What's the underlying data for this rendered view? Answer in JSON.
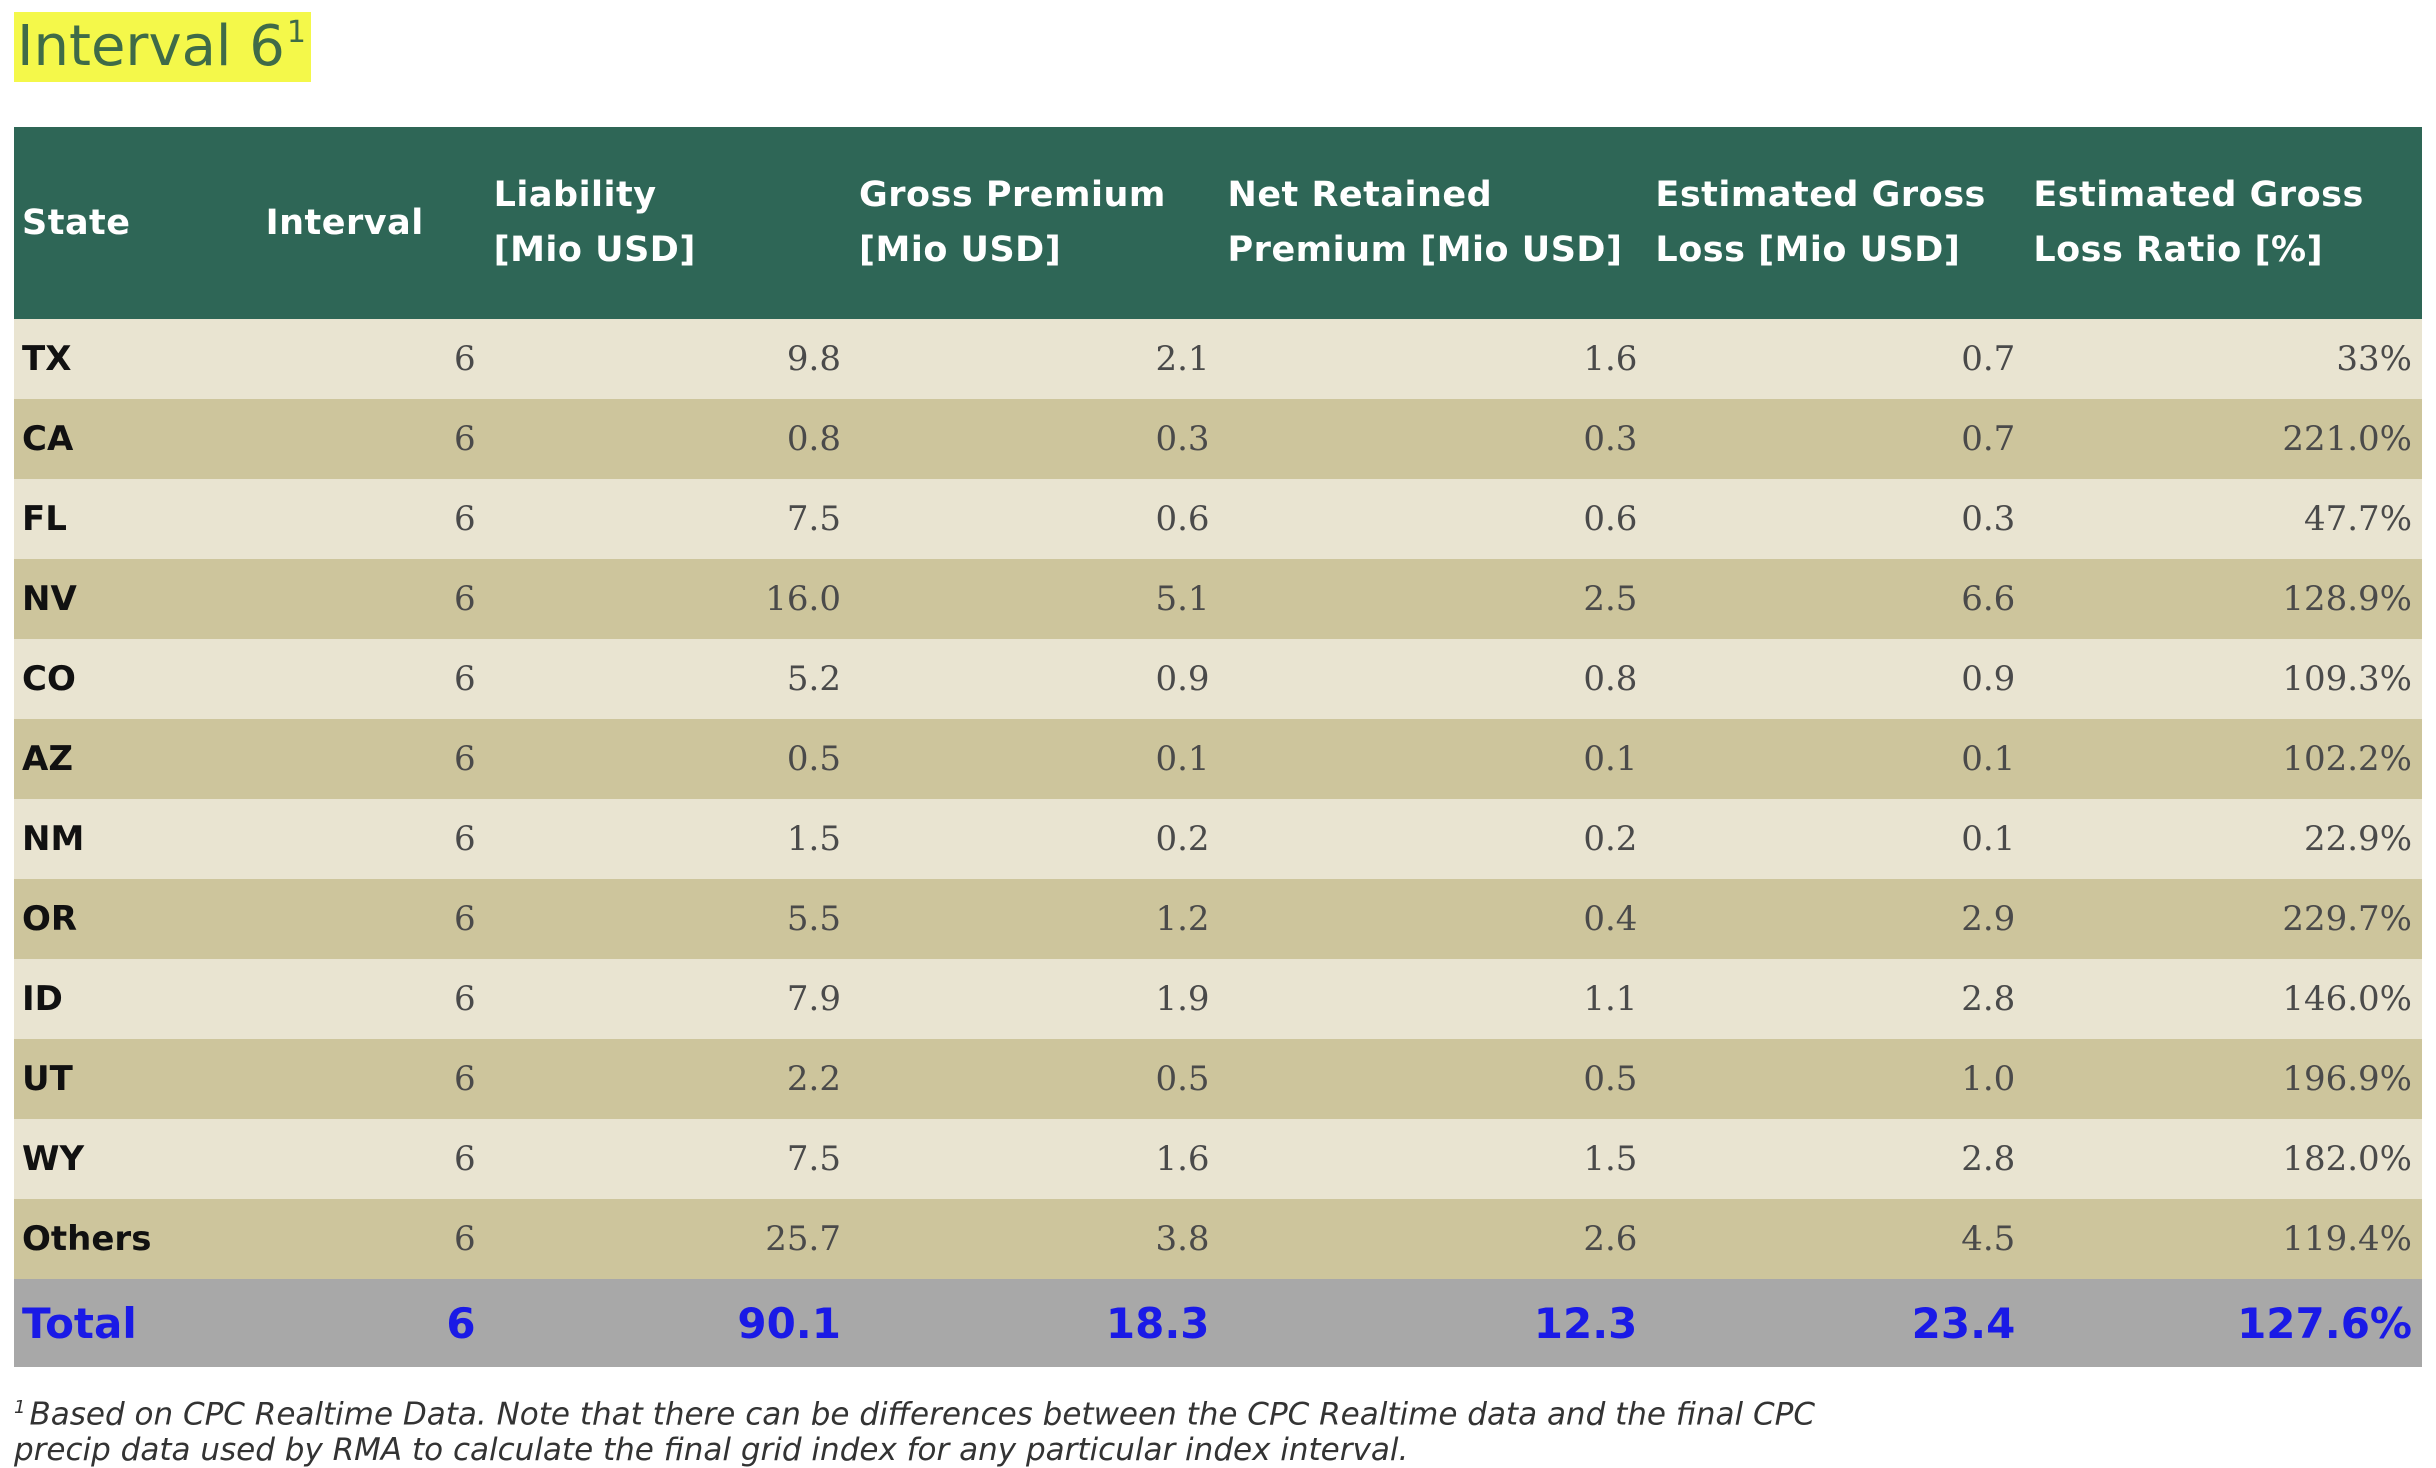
{
  "title": {
    "text": "Interval 6",
    "footnote_marker": "1"
  },
  "table": {
    "headers": {
      "state": "State",
      "interval": "Interval",
      "liability_l1": "Liability",
      "liability_l2": "[Mio USD]",
      "gross_premium_l1": "Gross Premium",
      "gross_premium_l2": "[Mio USD]",
      "net_retained_l1": "Net Retained",
      "net_retained_l2": "Premium [Mio USD]",
      "est_gross_loss_l1": "Estimated Gross",
      "est_gross_loss_l2": "Loss [Mio USD]",
      "est_loss_ratio_l1": "Estimated Gross",
      "est_loss_ratio_l2": "Loss Ratio [%]"
    },
    "rows": [
      {
        "state": "TX",
        "interval": "6",
        "liability": "9.8",
        "gross_premium": "2.1",
        "net_retained": "1.6",
        "est_gross_loss": "0.7",
        "loss_ratio": "33%"
      },
      {
        "state": "CA",
        "interval": "6",
        "liability": "0.8",
        "gross_premium": "0.3",
        "net_retained": "0.3",
        "est_gross_loss": "0.7",
        "loss_ratio": "221.0%"
      },
      {
        "state": "FL",
        "interval": "6",
        "liability": "7.5",
        "gross_premium": "0.6",
        "net_retained": "0.6",
        "est_gross_loss": "0.3",
        "loss_ratio": "47.7%"
      },
      {
        "state": "NV",
        "interval": "6",
        "liability": "16.0",
        "gross_premium": "5.1",
        "net_retained": "2.5",
        "est_gross_loss": "6.6",
        "loss_ratio": "128.9%"
      },
      {
        "state": "CO",
        "interval": "6",
        "liability": "5.2",
        "gross_premium": "0.9",
        "net_retained": "0.8",
        "est_gross_loss": "0.9",
        "loss_ratio": "109.3%"
      },
      {
        "state": "AZ",
        "interval": "6",
        "liability": "0.5",
        "gross_premium": "0.1",
        "net_retained": "0.1",
        "est_gross_loss": "0.1",
        "loss_ratio": "102.2%"
      },
      {
        "state": "NM",
        "interval": "6",
        "liability": "1.5",
        "gross_premium": "0.2",
        "net_retained": "0.2",
        "est_gross_loss": "0.1",
        "loss_ratio": "22.9%"
      },
      {
        "state": "OR",
        "interval": "6",
        "liability": "5.5",
        "gross_premium": "1.2",
        "net_retained": "0.4",
        "est_gross_loss": "2.9",
        "loss_ratio": "229.7%"
      },
      {
        "state": "ID",
        "interval": "6",
        "liability": "7.9",
        "gross_premium": "1.9",
        "net_retained": "1.1",
        "est_gross_loss": "2.8",
        "loss_ratio": "146.0%"
      },
      {
        "state": "UT",
        "interval": "6",
        "liability": "2.2",
        "gross_premium": "0.5",
        "net_retained": "0.5",
        "est_gross_loss": "1.0",
        "loss_ratio": "196.9%"
      },
      {
        "state": "WY",
        "interval": "6",
        "liability": "7.5",
        "gross_premium": "1.6",
        "net_retained": "1.5",
        "est_gross_loss": "2.8",
        "loss_ratio": "182.0%"
      },
      {
        "state": "Others",
        "interval": "6",
        "liability": "25.7",
        "gross_premium": "3.8",
        "net_retained": "2.6",
        "est_gross_loss": "4.5",
        "loss_ratio": "119.4%"
      }
    ],
    "total": {
      "state": "Total",
      "interval": "6",
      "liability": "90.1",
      "gross_premium": "18.3",
      "net_retained": "12.3",
      "est_gross_loss": "23.4",
      "loss_ratio": "127.6%"
    }
  },
  "footnote": {
    "marker": "1",
    "text": "Based on CPC Realtime Data. Note that there can be differences between the CPC Realtime data and the final CPC precip data used by RMA to calculate the final grid index for any particular index interval."
  },
  "colors": {
    "header_bg": "#2e6656",
    "row_light": "#e9e4d1",
    "row_dark": "#cdc59c",
    "total_bg": "#a8a8a8",
    "total_text": "#1a1ae6",
    "title_highlight": "#f4f84a",
    "title_text": "#3f6b48"
  }
}
